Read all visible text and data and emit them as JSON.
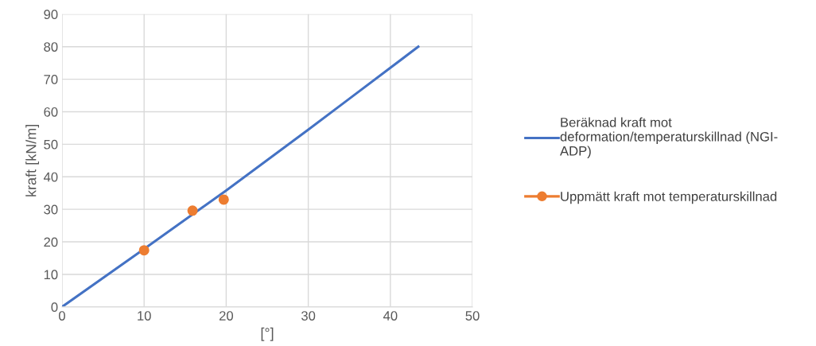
{
  "chart_data": {
    "type": "line",
    "xlabel": "[°]",
    "ylabel": "kraft [kN/m]",
    "xlim": [
      0,
      50
    ],
    "ylim": [
      0,
      90
    ],
    "xticks": [
      0,
      10,
      20,
      30,
      40,
      50
    ],
    "yticks": [
      0,
      10,
      20,
      30,
      40,
      50,
      60,
      70,
      80,
      90
    ],
    "grid": true,
    "legend": "right",
    "series": [
      {
        "name": "Beräknad kraft mot\ndeformation/temperaturskillnad (NGI-\nADP)",
        "color": "#4472c4",
        "marker": "none",
        "x": [
          0,
          10,
          20,
          30,
          35,
          43.4
        ],
        "values": [
          0,
          17.8,
          35.8,
          54.5,
          64,
          80
        ]
      },
      {
        "name": "Uppmätt kraft mot temperaturskillnad",
        "color": "#ed7d31",
        "type": "scatter",
        "marker": "circle",
        "x": [
          10,
          15.9,
          19.7
        ],
        "values": [
          17.4,
          29.6,
          33
        ]
      }
    ]
  }
}
